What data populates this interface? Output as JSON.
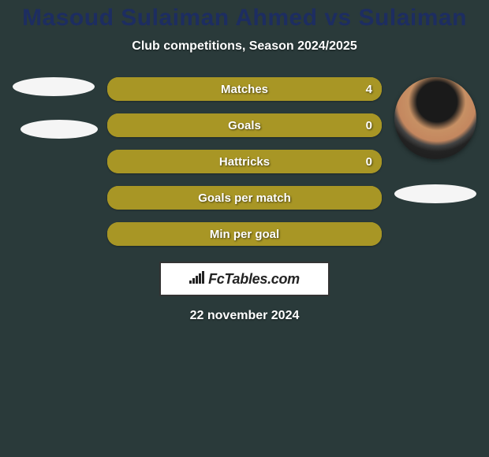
{
  "background_color": "#2a3a3a",
  "title": {
    "text": "Masoud Sulaiman Ahmed vs Sulaiman",
    "color": "#1d2d61",
    "fontsize": 30
  },
  "subtitle": {
    "text": "Club competitions, Season 2024/2025",
    "color": "#ffffff",
    "fontsize": 16
  },
  "players": {
    "left": {
      "has_photo": false
    },
    "right": {
      "has_photo": true
    }
  },
  "bars": {
    "type": "h2h-bar",
    "bar_bg_color": "#a89625",
    "bar_border_radius": 14,
    "label_color": "#ffffff",
    "label_fontsize": 15,
    "fill_colors": {
      "left": "#a89625",
      "right": "#a89625"
    },
    "items": [
      {
        "label": "Matches",
        "left": "",
        "right": "4",
        "left_pct": 0,
        "right_pct": 100
      },
      {
        "label": "Goals",
        "left": "",
        "right": "0",
        "left_pct": 0,
        "right_pct": 100
      },
      {
        "label": "Hattricks",
        "left": "",
        "right": "0",
        "left_pct": 0,
        "right_pct": 100
      },
      {
        "label": "Goals per match",
        "left": "",
        "right": "",
        "left_pct": 50,
        "right_pct": 50
      },
      {
        "label": "Min per goal",
        "left": "",
        "right": "",
        "left_pct": 50,
        "right_pct": 50
      }
    ]
  },
  "brand": {
    "icon": "signal-bars",
    "text": "FcTables.com",
    "border_color": "#333333",
    "bg_color": "#ffffff",
    "text_color": "#232323"
  },
  "date": {
    "text": "22 november 2024",
    "color": "#ffffff",
    "fontsize": 16
  }
}
